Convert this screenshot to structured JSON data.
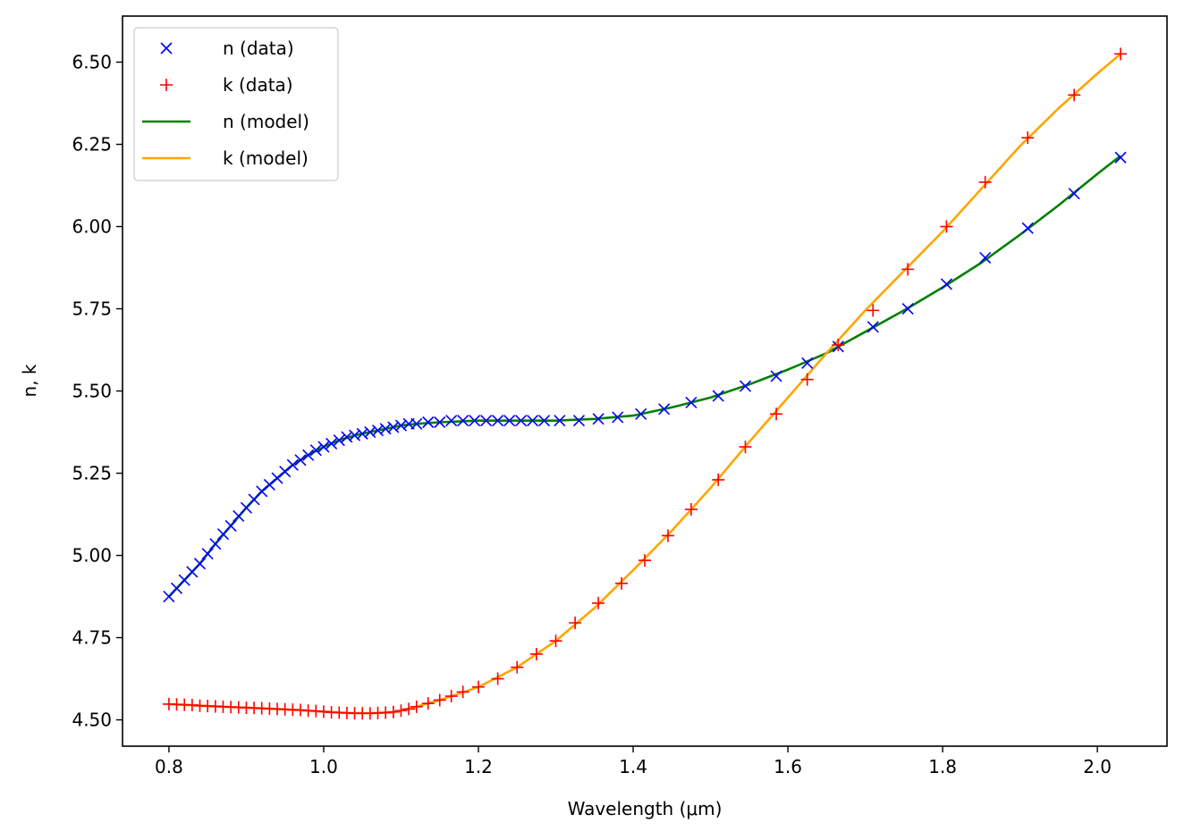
{
  "chart_data": {
    "type": "line",
    "xlabel": "Wavelength (μm)",
    "ylabel": "n, k",
    "xlim": [
      0.74,
      2.09
    ],
    "ylim": [
      4.42,
      6.64
    ],
    "xticks": [
      0.8,
      1.0,
      1.2,
      1.4,
      1.6,
      1.8,
      2.0
    ],
    "xtick_labels": [
      "0.8",
      "1.0",
      "1.2",
      "1.4",
      "1.6",
      "1.8",
      "2.0"
    ],
    "yticks": [
      4.5,
      4.75,
      5.0,
      5.25,
      5.5,
      5.75,
      6.0,
      6.25,
      6.5
    ],
    "ytick_labels": [
      "4.50",
      "4.75",
      "5.00",
      "5.25",
      "5.50",
      "5.75",
      "6.00",
      "6.25",
      "6.50"
    ],
    "legend_position": "top-left",
    "series": [
      {
        "name": "n (data)",
        "kind": "marker",
        "marker": "x",
        "color": "#0000ff",
        "x": [
          0.8,
          0.81,
          0.82,
          0.83,
          0.84,
          0.85,
          0.86,
          0.87,
          0.88,
          0.89,
          0.9,
          0.91,
          0.92,
          0.93,
          0.94,
          0.95,
          0.96,
          0.97,
          0.98,
          0.99,
          1.0,
          1.01,
          1.02,
          1.03,
          1.04,
          1.05,
          1.06,
          1.07,
          1.08,
          1.09,
          1.1,
          1.11,
          1.12,
          1.135,
          1.15,
          1.165,
          1.18,
          1.195,
          1.21,
          1.225,
          1.24,
          1.255,
          1.27,
          1.285,
          1.305,
          1.33,
          1.355,
          1.38,
          1.41,
          1.44,
          1.475,
          1.51,
          1.545,
          1.585,
          1.625,
          1.665,
          1.71,
          1.755,
          1.805,
          1.855,
          1.91,
          1.97,
          2.03
        ],
        "y": [
          4.875,
          4.9,
          4.925,
          4.95,
          4.975,
          5.005,
          5.035,
          5.065,
          5.09,
          5.12,
          5.145,
          5.17,
          5.195,
          5.215,
          5.235,
          5.255,
          5.275,
          5.29,
          5.305,
          5.32,
          5.33,
          5.34,
          5.35,
          5.36,
          5.365,
          5.37,
          5.375,
          5.38,
          5.385,
          5.39,
          5.395,
          5.4,
          5.4,
          5.405,
          5.405,
          5.41,
          5.41,
          5.41,
          5.41,
          5.41,
          5.41,
          5.41,
          5.41,
          5.41,
          5.41,
          5.41,
          5.415,
          5.42,
          5.43,
          5.445,
          5.465,
          5.485,
          5.515,
          5.545,
          5.585,
          5.635,
          5.695,
          5.75,
          5.825,
          5.905,
          5.995,
          6.1,
          6.21
        ]
      },
      {
        "name": "k (data)",
        "kind": "marker",
        "marker": "+",
        "color": "#ff0000",
        "x": [
          0.8,
          0.81,
          0.82,
          0.83,
          0.84,
          0.85,
          0.86,
          0.87,
          0.88,
          0.89,
          0.9,
          0.91,
          0.92,
          0.93,
          0.94,
          0.95,
          0.96,
          0.97,
          0.98,
          0.99,
          1.0,
          1.01,
          1.02,
          1.03,
          1.04,
          1.05,
          1.06,
          1.07,
          1.08,
          1.09,
          1.1,
          1.11,
          1.12,
          1.135,
          1.15,
          1.165,
          1.18,
          1.2,
          1.225,
          1.25,
          1.275,
          1.3,
          1.325,
          1.355,
          1.385,
          1.415,
          1.445,
          1.475,
          1.51,
          1.545,
          1.585,
          1.625,
          1.665,
          1.71,
          1.755,
          1.805,
          1.855,
          1.91,
          1.97,
          2.03
        ],
        "y": [
          4.548,
          4.547,
          4.546,
          4.545,
          4.543,
          4.542,
          4.541,
          4.54,
          4.539,
          4.538,
          4.537,
          4.536,
          4.535,
          4.534,
          4.533,
          4.532,
          4.531,
          4.53,
          4.528,
          4.527,
          4.525,
          4.523,
          4.522,
          4.521,
          4.52,
          4.52,
          4.52,
          4.521,
          4.522,
          4.524,
          4.528,
          4.533,
          4.54,
          4.55,
          4.56,
          4.572,
          4.585,
          4.6,
          4.625,
          4.66,
          4.7,
          4.74,
          4.795,
          4.855,
          4.915,
          4.985,
          5.06,
          5.14,
          5.23,
          5.33,
          5.43,
          5.535,
          5.64,
          5.745,
          5.87,
          6.0,
          6.135,
          6.27,
          6.4,
          6.525
        ]
      },
      {
        "name": "n (model)",
        "kind": "line",
        "color": "#008000",
        "x": [
          0.8,
          0.82,
          0.84,
          0.86,
          0.88,
          0.9,
          0.92,
          0.94,
          0.96,
          0.98,
          1.0,
          1.02,
          1.04,
          1.06,
          1.08,
          1.1,
          1.12,
          1.15,
          1.2,
          1.25,
          1.3,
          1.35,
          1.4,
          1.45,
          1.5,
          1.55,
          1.6,
          1.65,
          1.7,
          1.75,
          1.8,
          1.85,
          1.9,
          1.95,
          2.0,
          2.03
        ],
        "y": [
          4.875,
          4.925,
          4.975,
          5.035,
          5.09,
          5.145,
          5.195,
          5.235,
          5.275,
          5.305,
          5.33,
          5.35,
          5.365,
          5.375,
          5.385,
          5.395,
          5.4,
          5.405,
          5.41,
          5.41,
          5.41,
          5.415,
          5.425,
          5.45,
          5.48,
          5.52,
          5.565,
          5.615,
          5.68,
          5.745,
          5.815,
          5.89,
          5.975,
          6.065,
          6.16,
          6.215
        ]
      },
      {
        "name": "k (model)",
        "kind": "line",
        "color": "#ffa500",
        "x": [
          0.8,
          0.85,
          0.9,
          0.95,
          1.0,
          1.03,
          1.06,
          1.09,
          1.12,
          1.15,
          1.2,
          1.25,
          1.3,
          1.35,
          1.4,
          1.45,
          1.5,
          1.55,
          1.6,
          1.65,
          1.7,
          1.75,
          1.8,
          1.85,
          1.9,
          1.95,
          2.0,
          2.03
        ],
        "y": [
          4.548,
          4.542,
          4.537,
          4.532,
          4.525,
          4.521,
          4.52,
          4.523,
          4.54,
          4.56,
          4.6,
          4.66,
          4.74,
          4.84,
          4.955,
          5.075,
          5.205,
          5.345,
          5.48,
          5.615,
          5.745,
          5.865,
          5.985,
          6.115,
          6.245,
          6.36,
          6.465,
          6.525
        ]
      }
    ]
  }
}
